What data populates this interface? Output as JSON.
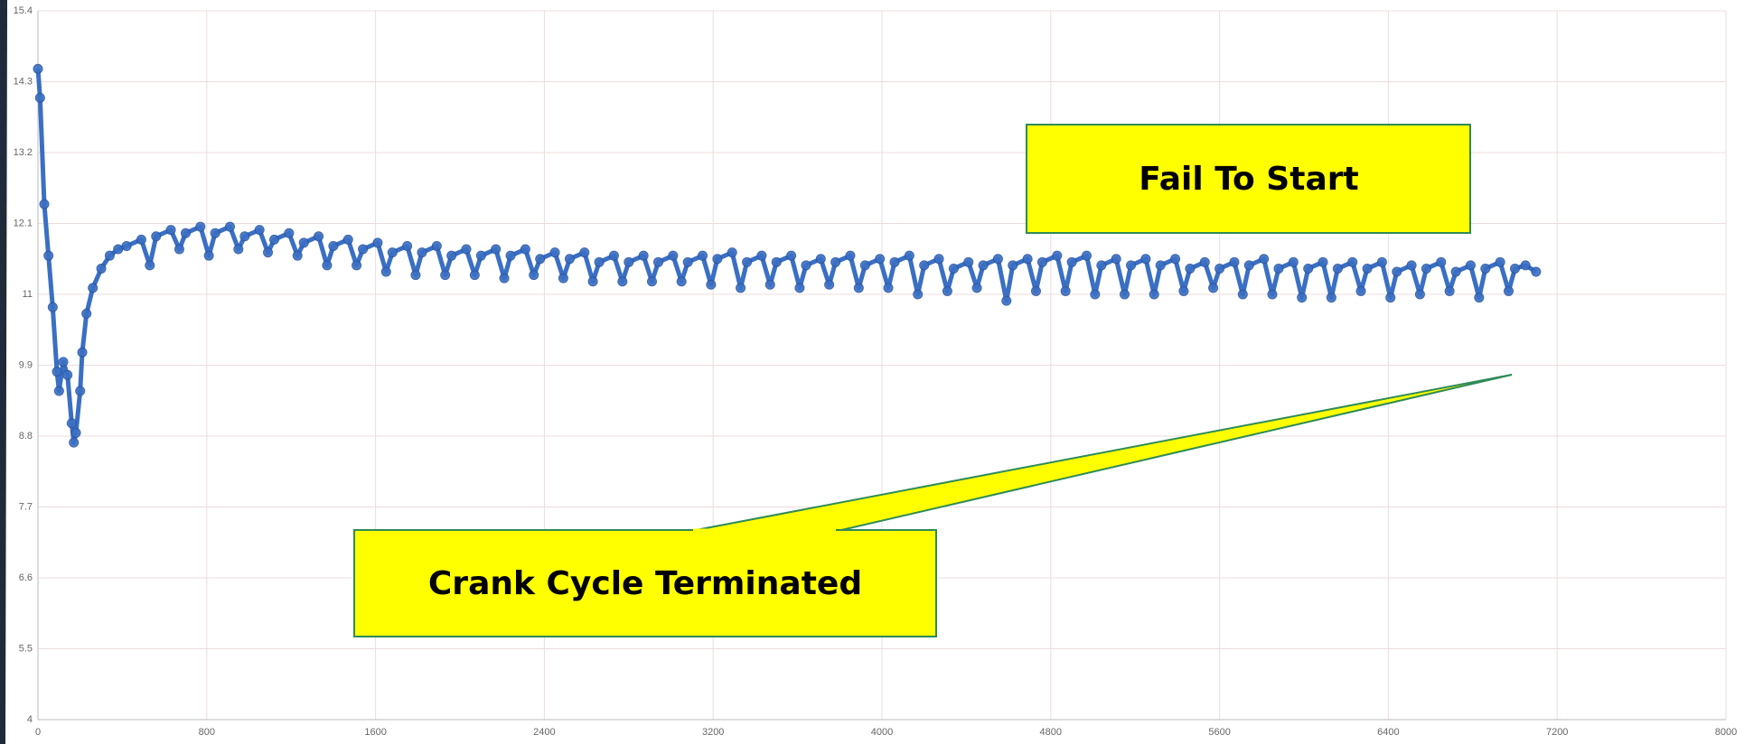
{
  "chart_data": {
    "type": "line",
    "x": [
      0,
      10,
      30,
      50,
      70,
      90,
      100,
      120,
      140,
      160,
      170,
      180,
      200,
      210,
      230,
      260,
      300,
      340,
      380,
      420,
      490,
      530,
      560,
      630,
      670,
      700,
      770,
      810,
      840,
      910,
      950,
      980,
      1050,
      1090,
      1120,
      1190,
      1230,
      1260,
      1330,
      1370,
      1400,
      1470,
      1510,
      1540,
      1610,
      1650,
      1680,
      1750,
      1790,
      1820,
      1890,
      1930,
      1960,
      2030,
      2070,
      2100,
      2170,
      2210,
      2240,
      2310,
      2350,
      2380,
      2450,
      2490,
      2520,
      2590,
      2630,
      2660,
      2730,
      2770,
      2800,
      2870,
      2910,
      2940,
      3010,
      3050,
      3080,
      3150,
      3190,
      3220,
      3290,
      3330,
      3360,
      3430,
      3470,
      3500,
      3570,
      3610,
      3640,
      3710,
      3750,
      3780,
      3850,
      3890,
      3920,
      3990,
      4030,
      4060,
      4130,
      4170,
      4200,
      4270,
      4310,
      4340,
      4410,
      4450,
      4480,
      4550,
      4590,
      4620,
      4690,
      4730,
      4760,
      4830,
      4870,
      4900,
      4970,
      5010,
      5040,
      5110,
      5150,
      5180,
      5250,
      5290,
      5320,
      5390,
      5430,
      5460,
      5530,
      5570,
      5600,
      5670,
      5710,
      5740,
      5810,
      5850,
      5880,
      5950,
      5990,
      6020,
      6090,
      6130,
      6160,
      6230,
      6270,
      6300,
      6370,
      6410,
      6440,
      6510,
      6550,
      6580,
      6650,
      6690,
      6720,
      6790,
      6830,
      6860,
      6930,
      6970,
      7000,
      7050,
      7100
    ],
    "series": [
      {
        "color": "#3a6fc4",
        "values": [
          14.5,
          14.05,
          12.4,
          11.6,
          10.8,
          9.8,
          9.5,
          9.95,
          9.75,
          9.0,
          8.7,
          8.85,
          9.5,
          10.1,
          10.7,
          11.1,
          11.4,
          11.6,
          11.7,
          11.75,
          11.85,
          11.45,
          11.9,
          12.0,
          11.7,
          11.95,
          12.05,
          11.6,
          11.95,
          12.05,
          11.7,
          11.9,
          12.0,
          11.65,
          11.85,
          11.95,
          11.6,
          11.8,
          11.9,
          11.45,
          11.75,
          11.85,
          11.45,
          11.7,
          11.8,
          11.35,
          11.65,
          11.75,
          11.3,
          11.65,
          11.75,
          11.3,
          11.6,
          11.7,
          11.3,
          11.6,
          11.7,
          11.25,
          11.6,
          11.7,
          11.3,
          11.55,
          11.65,
          11.25,
          11.55,
          11.65,
          11.2,
          11.5,
          11.6,
          11.2,
          11.5,
          11.6,
          11.2,
          11.5,
          11.6,
          11.2,
          11.5,
          11.6,
          11.15,
          11.55,
          11.65,
          11.1,
          11.5,
          11.6,
          11.15,
          11.5,
          11.6,
          11.1,
          11.45,
          11.55,
          11.15,
          11.5,
          11.6,
          11.1,
          11.45,
          11.55,
          11.1,
          11.5,
          11.6,
          11.0,
          11.45,
          11.55,
          11.05,
          11.4,
          11.5,
          11.1,
          11.45,
          11.55,
          10.9,
          11.45,
          11.55,
          11.05,
          11.5,
          11.6,
          11.05,
          11.5,
          11.6,
          11.0,
          11.45,
          11.55,
          11.0,
          11.45,
          11.55,
          11.0,
          11.45,
          11.55,
          11.05,
          11.4,
          11.5,
          11.1,
          11.4,
          11.5,
          11.0,
          11.45,
          11.55,
          11.0,
          11.4,
          11.5,
          10.95,
          11.4,
          11.5,
          10.95,
          11.4,
          11.5,
          11.05,
          11.4,
          11.5,
          10.95,
          11.35,
          11.45,
          11.0,
          11.4,
          11.5,
          11.05,
          11.35,
          11.45,
          10.95,
          11.4,
          11.5,
          11.05,
          11.4,
          11.45,
          11.35
        ]
      }
    ],
    "xlim": [
      0,
      8000
    ],
    "xticks": [
      0,
      800,
      1600,
      2400,
      3200,
      4000,
      4800,
      5600,
      6400,
      7200,
      8000
    ],
    "ylim": [
      4.4,
      15.4
    ],
    "yticks": [
      {
        "value": 4.4,
        "label": "4"
      },
      5.5,
      6.6,
      7.7,
      8.8,
      9.9,
      11,
      12.1,
      13.2,
      14.3,
      15.4
    ],
    "grid": true,
    "annotations": [
      "Fail To Start",
      "Crank Cycle Terminated"
    ]
  }
}
